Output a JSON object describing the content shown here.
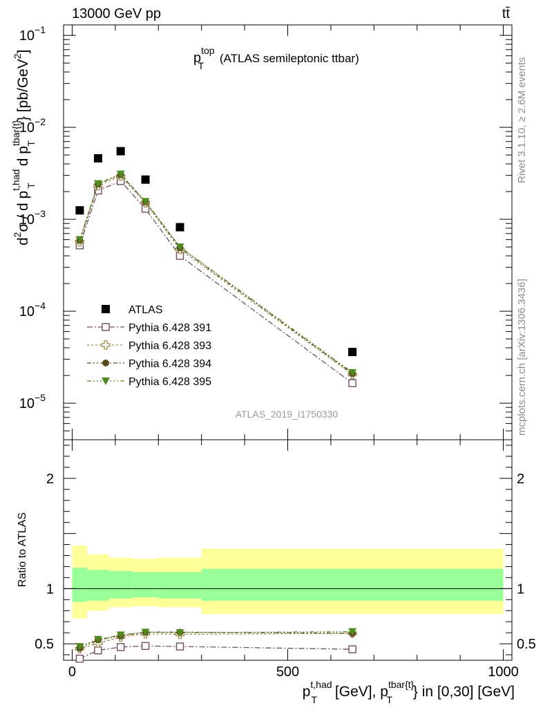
{
  "header": {
    "energy_label": "13000 GeV pp",
    "process_label": "tt̄"
  },
  "side_labels": {
    "rivet": "Rivet 3.1.10, ≥ 2.6M events",
    "mcplots": "mcplots.cern.ch [arXiv:1306.3436]"
  },
  "chart_data": {
    "type": "scatter",
    "title": {
      "main": "p",
      "sup": "top",
      "sub": "T",
      "rest": " (ATLAS semileptonic ttbar)"
    },
    "analysis_id": "ATLAS_2019_I1750330",
    "ylabel_main": {
      "p1": "d",
      "p1_sup": "2",
      "p2": "σ / d p",
      "p2_sup": "t,had",
      "p2_sub": "T",
      "p3": " d p",
      "p3_sup": "tbar{t}",
      "p3_sub": "T",
      "p4": "} [pb/GeV",
      "p4_sup": "2",
      "p5": "]"
    },
    "ylabel_ratio": "Ratio to ATLAS",
    "xlabel": {
      "p1": "p",
      "p1_sup": "t,had",
      "p1_sub": "T",
      "p2": " [GeV], p",
      "p2_sup": "tbar{t}",
      "p2_sub": "T",
      "p3": "} in [0,30] [GeV]"
    },
    "xlim": [
      -20,
      1020
    ],
    "ylim_main": [
      4e-06,
      0.13
    ],
    "ylim_ratio": [
      0.35,
      2.35
    ],
    "y_scale_main": "log",
    "x_ticks": [
      {
        "v": 0,
        "label": "0"
      },
      {
        "v": 500,
        "label": "500"
      },
      {
        "v": 1000,
        "label": "1000"
      }
    ],
    "y_ticks_main": [
      {
        "v": 1e-05,
        "base": "10",
        "exp": "−5"
      },
      {
        "v": 0.0001,
        "base": "10",
        "exp": "−4"
      },
      {
        "v": 0.001,
        "base": "10",
        "exp": "−3"
      },
      {
        "v": 0.01,
        "base": "10",
        "exp": "−2"
      },
      {
        "v": 0.1,
        "base": "10",
        "exp": "−1"
      }
    ],
    "y_ticks_ratio": [
      {
        "v": 0.5,
        "label": "0.5"
      },
      {
        "v": 1,
        "label": "1"
      },
      {
        "v": 2,
        "label": "2"
      }
    ],
    "bins": [
      [
        0,
        35
      ],
      [
        35,
        85
      ],
      [
        85,
        140
      ],
      [
        140,
        200
      ],
      [
        200,
        300
      ],
      [
        300,
        1000
      ]
    ],
    "x": [
      17.5,
      60,
      112.5,
      170,
      250,
      650
    ],
    "data": {
      "name": "ATLAS",
      "color": "#000000",
      "values": [
        0.00125,
        0.0046,
        0.0055,
        0.0027,
        0.00082,
        3.6e-05
      ]
    },
    "uncertainty_bands": {
      "inner_color": "#99ff99",
      "outer_color": "#ffff99",
      "inner": [
        [
          0.88,
          1.19
        ],
        [
          0.89,
          1.17
        ],
        [
          0.91,
          1.16
        ],
        [
          0.92,
          1.15
        ],
        [
          0.91,
          1.15
        ],
        [
          0.89,
          1.18
        ]
      ],
      "outer": [
        [
          0.73,
          1.39
        ],
        [
          0.8,
          1.31
        ],
        [
          0.83,
          1.28
        ],
        [
          0.84,
          1.27
        ],
        [
          0.83,
          1.28
        ],
        [
          0.77,
          1.36
        ]
      ]
    },
    "series": [
      {
        "name": "Pythia 6.428 391",
        "color": "#734a63",
        "marker": "open-square",
        "values": [
          0.00052,
          0.00205,
          0.0026,
          0.0013,
          0.0004,
          1.65e-05
        ],
        "ratio": [
          0.365,
          0.44,
          0.47,
          0.48,
          0.475,
          0.45
        ]
      },
      {
        "name": "Pythia 6.428 393",
        "color": "#9c8a4a",
        "marker": "open-cross",
        "values": [
          0.00057,
          0.00232,
          0.00295,
          0.00151,
          0.00047,
          2.05e-05
        ],
        "ratio": [
          0.455,
          0.505,
          0.56,
          0.59,
          0.585,
          0.595
        ]
      },
      {
        "name": "Pythia 6.428 394",
        "color": "#5c4a1f",
        "marker": "filled-circle",
        "values": [
          0.00059,
          0.00242,
          0.00305,
          0.00155,
          0.00049,
          2.1e-05
        ],
        "ratio": [
          0.46,
          0.535,
          0.57,
          0.605,
          0.605,
          0.595
        ]
      },
      {
        "name": "Pythia 6.428 395",
        "color": "#4f8a1f",
        "marker": "filled-triangle-down",
        "values": [
          0.0006,
          0.00244,
          0.0031,
          0.00156,
          0.0005,
          2.15e-05
        ],
        "ratio": [
          0.475,
          0.54,
          0.58,
          0.605,
          0.6,
          0.61
        ]
      }
    ],
    "legend_position": "lower-left"
  }
}
